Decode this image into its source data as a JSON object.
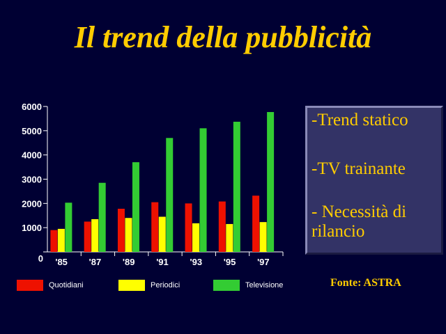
{
  "title": "Il trend della pubblicità",
  "notes": [
    "-Trend statico",
    "-TV trainante",
    "- Necessità di\nrilancio"
  ],
  "source": "Fonte: ASTRA",
  "colors": {
    "background": "#000033",
    "title": "#FFCC00",
    "panel": "#333366",
    "quotidiani": "#EE1100",
    "periodici": "#FFFF00",
    "televisione": "#33CC33"
  },
  "chart_data": {
    "type": "bar",
    "categories": [
      "'85",
      "'87",
      "'89",
      "'91",
      "'93",
      "'95",
      "'97"
    ],
    "series": [
      {
        "name": "Quotidiani",
        "values": [
          900,
          1250,
          1780,
          2050,
          2000,
          2080,
          2320
        ]
      },
      {
        "name": "Periodici",
        "values": [
          950,
          1350,
          1400,
          1450,
          1180,
          1150,
          1230
        ]
      },
      {
        "name": "Televisione",
        "values": [
          2030,
          2850,
          3700,
          4700,
          5100,
          5370,
          5770
        ]
      }
    ],
    "yticks": [
      0,
      1000,
      2000,
      3000,
      4000,
      5000,
      6000
    ],
    "ylim": [
      0,
      6000
    ],
    "grid": false,
    "legend_position": "bottom"
  }
}
